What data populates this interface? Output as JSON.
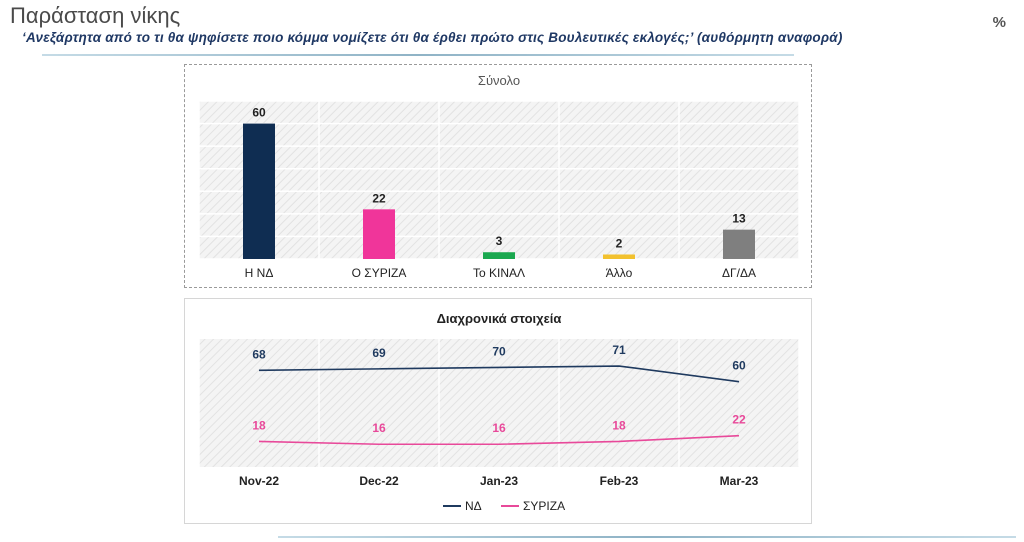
{
  "header": {
    "title": "Παράσταση νίκης",
    "subtitle": "‘Ανεξάρτητα από το τι θα ψηφίσετε ποιο κόμμα νομίζετε ότι θα έρθει πρώτο στις Βουλευτικές εκλογές;’ (αυθόρμητη αναφορά)",
    "unit": "%"
  },
  "chart_data": [
    {
      "type": "bar",
      "title": "Σύνολο",
      "categories": [
        "Η ΝΔ",
        "Ο ΣΥΡΙΖΑ",
        "Το ΚΙΝΑΛ",
        "Άλλο",
        "ΔΓ/ΔΑ"
      ],
      "values": [
        60,
        22,
        3,
        2,
        13
      ],
      "colors": [
        "#0f2d52",
        "#f0359a",
        "#1aa84f",
        "#f2c12e",
        "#7f7f7f"
      ],
      "ylim": [
        0,
        70
      ],
      "grid": true
    },
    {
      "type": "line",
      "title": "Διαχρονικά στοιχεία",
      "x": [
        "Nov-22",
        "Dec-22",
        "Jan-23",
        "Feb-23",
        "Mar-23"
      ],
      "series": [
        {
          "name": "ΝΔ",
          "values": [
            68,
            69,
            70,
            71,
            60
          ],
          "color": "#1f3a5f"
        },
        {
          "name": "ΣΥΡΙΖΑ",
          "values": [
            18,
            16,
            16,
            18,
            22
          ],
          "color": "#e8499a"
        }
      ],
      "ylim": [
        0,
        90
      ],
      "legend": "bottom",
      "grid": true
    }
  ]
}
